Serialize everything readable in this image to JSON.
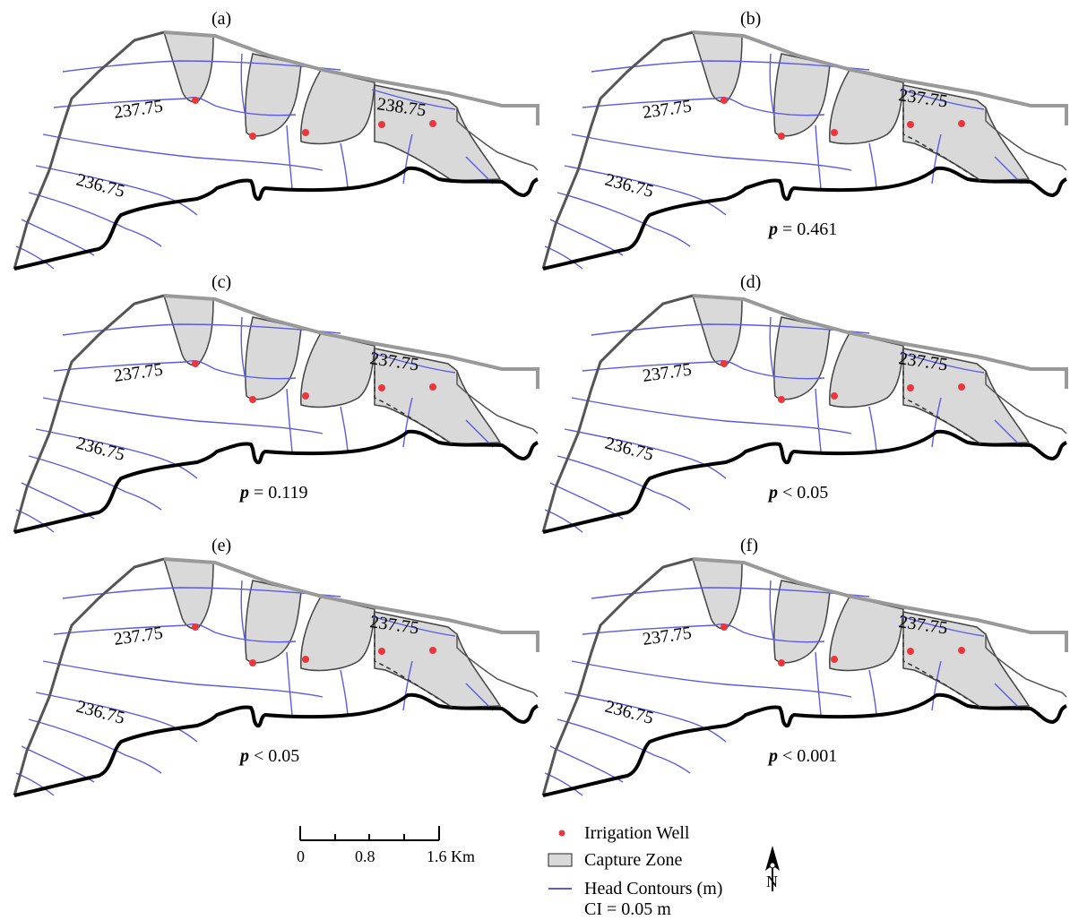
{
  "panels": [
    {
      "label": "(a)",
      "contour_labels": [
        "237.75",
        "238.75",
        "236.75"
      ],
      "p_prefix": "",
      "p_value": ""
    },
    {
      "label": "(b)",
      "contour_labels": [
        "237.75",
        "237.75",
        "236.75"
      ],
      "p_prefix": "p",
      "p_value": " = 0.461"
    },
    {
      "label": "(c)",
      "contour_labels": [
        "237.75",
        "237.75",
        "236.75"
      ],
      "p_prefix": "p",
      "p_value": " = 0.119"
    },
    {
      "label": "(d)",
      "contour_labels": [
        "237.75",
        "237.75",
        "236.75"
      ],
      "p_prefix": "p",
      "p_value": " < 0.05"
    },
    {
      "label": "(e)",
      "contour_labels": [
        "237.75",
        "237.75",
        "236.75"
      ],
      "p_prefix": "p",
      "p_value": " < 0.05"
    },
    {
      "label": "(f)",
      "contour_labels": [
        "237.75",
        "237.75",
        "236.75"
      ],
      "p_prefix": "p",
      "p_value": " < 0.001"
    }
  ],
  "legend": {
    "well": "Irrigation Well",
    "capture": "Capture Zone",
    "contours": "Head Contours (m)",
    "ci": "CI = 0.05 m"
  },
  "scale": {
    "ticks": [
      "0",
      "0.8",
      "1.6 Km"
    ]
  },
  "north": "N",
  "colors": {
    "well": "#e8383d",
    "contour": "#5a5ae6",
    "capture_fill": "#d9d9d9",
    "boundary_outer": "#555555",
    "boundary_river": "#000000",
    "boundary_top": "#999999"
  }
}
